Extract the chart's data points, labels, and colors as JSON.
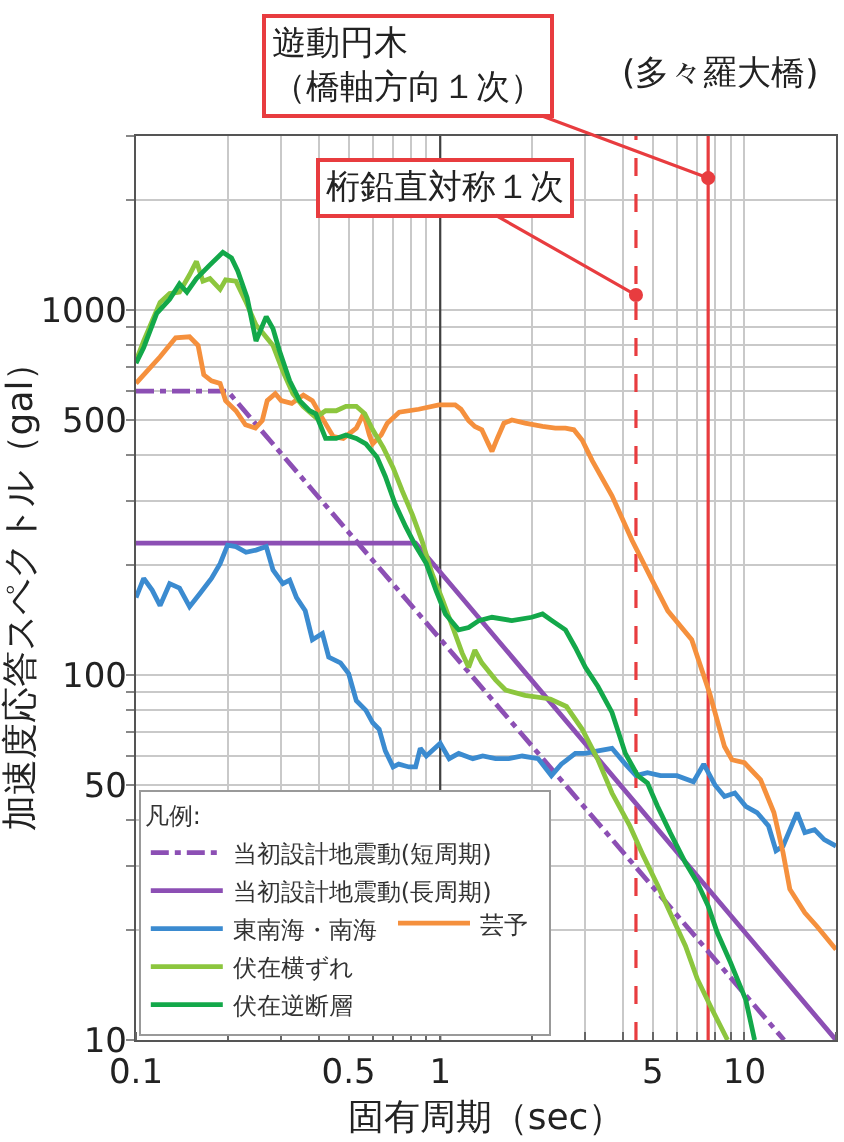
{
  "chart_data": {
    "type": "line",
    "xlabel": "固有周期（sec）",
    "ylabel": "加速度応答スペクトル（gal）",
    "log": "xy",
    "xlim": [
      0.1,
      20
    ],
    "ylim": [
      10,
      3000
    ],
    "xticks": [
      0.1,
      0.5,
      1,
      5,
      10
    ],
    "yticks": [
      10,
      50,
      100,
      500,
      1000
    ],
    "grid": true,
    "legend": "bottom left",
    "legend_title": "凡例:",
    "series": [
      {
        "name": "当初設計地震動(短周期)",
        "color": "#8c4fb4",
        "line_style": "dashdot",
        "x": [
          0.1,
          0.2,
          13.5
        ],
        "values": [
          600,
          600,
          10
        ]
      },
      {
        "name": "当初設計地震動(長周期)",
        "color": "#8c4fb4",
        "x": [
          0.1,
          0.83,
          20
        ],
        "values": [
          230,
          230,
          10
        ]
      },
      {
        "name": "東南海・南海",
        "color": "#3b8bd0",
        "x": [
          0.1,
          0.106,
          0.113,
          0.12,
          0.129,
          0.139,
          0.15,
          0.162,
          0.177,
          0.189,
          0.2,
          0.213,
          0.23,
          0.248,
          0.268,
          0.282,
          0.304,
          0.32,
          0.337,
          0.36,
          0.38,
          0.41,
          0.43,
          0.47,
          0.5,
          0.53,
          0.57,
          0.6,
          0.63,
          0.66,
          0.7,
          0.73,
          0.79,
          0.83,
          0.86,
          0.9,
          0.94,
          1.0,
          1.07,
          1.15,
          1.28,
          1.38,
          1.52,
          1.68,
          1.86,
          2.1,
          2.32,
          2.5,
          2.78,
          3.0,
          3.3,
          3.67,
          4.06,
          4.4,
          4.8,
          5.3,
          6.0,
          6.8,
          7.35,
          8.0,
          8.6,
          9.3,
          10.1,
          11.0,
          12.0,
          12.7,
          13.4,
          14.9,
          15.8,
          17.0,
          18.3,
          20
        ],
        "values": [
          163,
          184,
          171,
          155,
          178,
          173,
          154,
          167,
          184,
          202,
          227,
          225,
          217,
          220,
          225,
          194,
          178,
          182,
          163,
          150,
          125,
          130,
          112,
          108,
          101,
          85,
          80,
          74,
          71,
          62,
          56,
          57,
          56,
          56,
          63,
          60,
          62,
          65,
          59,
          61,
          59,
          60,
          59,
          59,
          60,
          59,
          53,
          57,
          61,
          61,
          62,
          63,
          57,
          53,
          54,
          53,
          53,
          51,
          57,
          50,
          46.5,
          47.5,
          43.7,
          42,
          38.6,
          33,
          34,
          42,
          37,
          37.7,
          35.4,
          34
        ]
      },
      {
        "name": "芸予",
        "color": "#f5903d",
        "x": [
          0.1,
          0.12,
          0.135,
          0.15,
          0.16,
          0.167,
          0.177,
          0.189,
          0.197,
          0.213,
          0.229,
          0.247,
          0.26,
          0.27,
          0.287,
          0.3,
          0.325,
          0.355,
          0.38,
          0.41,
          0.445,
          0.48,
          0.53,
          0.56,
          0.585,
          0.6,
          0.64,
          0.67,
          0.733,
          0.85,
          0.99,
          1.12,
          1.17,
          1.24,
          1.3,
          1.37,
          1.44,
          1.48,
          1.54,
          1.62,
          1.72,
          1.9,
          2.17,
          2.39,
          2.58,
          2.75,
          2.93,
          3.16,
          3.67,
          4.27,
          4.97,
          5.6,
          6.71,
          7.69,
          8.6,
          9.1,
          10.0,
          11.3,
          12.5,
          13.4,
          14.1,
          15.8,
          17.3,
          20
        ],
        "values": [
          630,
          745,
          840,
          845,
          800,
          665,
          640,
          630,
          565,
          530,
          485,
          475,
          498,
          565,
          590,
          565,
          555,
          585,
          565,
          505,
          450,
          445,
          475,
          520,
          455,
          430,
          455,
          490,
          525,
          535,
          550,
          550,
          535,
          498,
          480,
          470,
          430,
          410,
          445,
          490,
          500,
          490,
          480,
          475,
          475,
          470,
          440,
          387,
          310,
          234,
          182,
          150,
          125,
          89,
          63.7,
          58.6,
          57.5,
          51.6,
          42,
          32.6,
          25.9,
          22.3,
          20.5,
          17.7
        ]
      },
      {
        "name": "伏在横ずれ",
        "color": "#8cc63e",
        "x": [
          0.1,
          0.106,
          0.12,
          0.129,
          0.139,
          0.15,
          0.158,
          0.166,
          0.175,
          0.189,
          0.197,
          0.213,
          0.229,
          0.248,
          0.26,
          0.282,
          0.304,
          0.328,
          0.354,
          0.39,
          0.42,
          0.455,
          0.49,
          0.53,
          0.565,
          0.6,
          0.65,
          0.7,
          0.75,
          0.81,
          0.87,
          0.94,
          1.02,
          1.1,
          1.18,
          1.24,
          1.3,
          1.37,
          1.52,
          1.64,
          1.9,
          2.3,
          2.6,
          2.93,
          3.3,
          3.67,
          4.2,
          4.65,
          5.18,
          5.7,
          6.4,
          7.0,
          7.8,
          8.8
        ],
        "values": [
          726,
          823,
          1050,
          1110,
          1120,
          1250,
          1360,
          1200,
          1220,
          1140,
          1210,
          1200,
          1060,
          910,
          870,
          800,
          680,
          590,
          545,
          508,
          530,
          530,
          545,
          545,
          520,
          470,
          420,
          370,
          320,
          275,
          234,
          190,
          160,
          135,
          115,
          105,
          117,
          108,
          97,
          91,
          88,
          86,
          82,
          71,
          58.6,
          47.5,
          38.6,
          32,
          26.6,
          22.3,
          18.1,
          14.7,
          12.2,
          10
        ]
      },
      {
        "name": "伏在逆断層",
        "color": "#13a84a",
        "x": [
          0.1,
          0.106,
          0.117,
          0.129,
          0.139,
          0.147,
          0.158,
          0.175,
          0.193,
          0.206,
          0.216,
          0.232,
          0.248,
          0.268,
          0.282,
          0.296,
          0.32,
          0.345,
          0.372,
          0.39,
          0.42,
          0.455,
          0.49,
          0.53,
          0.57,
          0.62,
          0.66,
          0.71,
          0.77,
          0.83,
          0.9,
          0.97,
          1.04,
          1.15,
          1.24,
          1.34,
          1.48,
          1.72,
          2.0,
          2.17,
          2.33,
          2.58,
          2.78,
          3.0,
          3.3,
          3.67,
          4.06,
          4.46,
          4.8,
          5.18,
          5.7,
          6.4,
          7.0,
          7.6,
          8.14,
          9.0,
          10.1,
          10.8
        ],
        "values": [
          715,
          790,
          980,
          1070,
          1180,
          1120,
          1220,
          1330,
          1440,
          1390,
          1280,
          1080,
          823,
          960,
          890,
          775,
          640,
          565,
          530,
          520,
          445,
          445,
          455,
          445,
          430,
          395,
          350,
          295,
          255,
          226,
          202,
          170,
          147,
          133,
          135,
          141,
          144,
          141,
          144,
          147,
          141,
          133,
          119,
          105,
          93,
          79,
          61,
          53,
          50.6,
          43.7,
          37,
          30.6,
          27,
          23.3,
          19.7,
          16.3,
          12.9,
          10
        ]
      }
    ],
    "ref_lines": [
      {
        "axis": "x",
        "value": 1,
        "color": "#404040"
      },
      {
        "axis": "x",
        "value": 4.4,
        "color": "#e83c3f",
        "line_style": "dashed"
      },
      {
        "axis": "x",
        "value": 7.6,
        "color": "#e83c3f"
      }
    ],
    "annotations": [
      {
        "text": "桁鉛直対称１次",
        "x": 4.4,
        "y": 1100
      },
      {
        "text": "遊動円木（橋軸方向１次）",
        "x": 7.6,
        "y": 2300
      },
      "(多々羅大橋)"
    ]
  }
}
